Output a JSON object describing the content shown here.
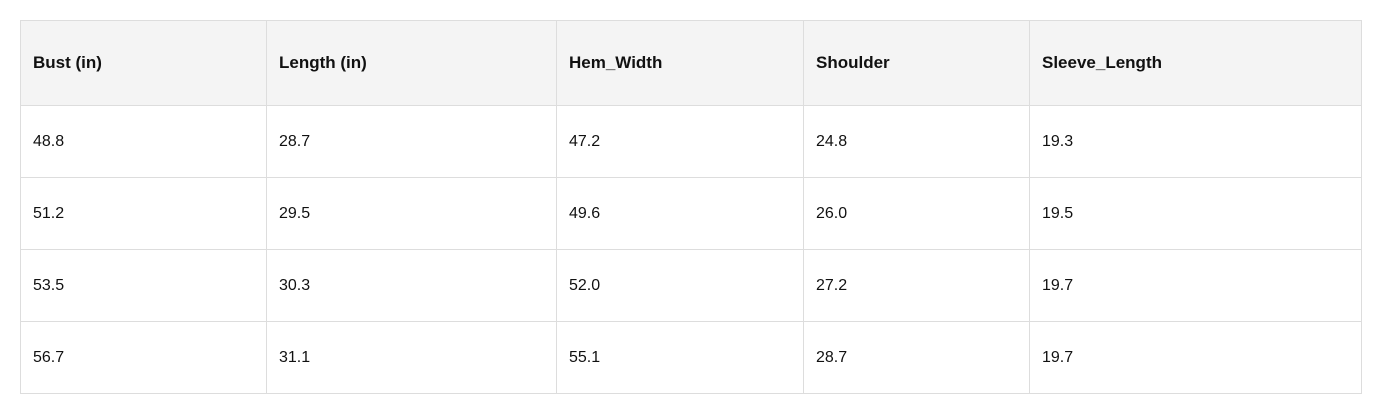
{
  "table": {
    "columns": [
      "Bust (in)",
      "Length (in)",
      "Hem_Width",
      "Shoulder",
      "Sleeve_Length"
    ],
    "rows": [
      [
        "48.8",
        "28.7",
        "47.2",
        "24.8",
        "19.3"
      ],
      [
        "51.2",
        "29.5",
        "49.6",
        "26.0",
        "19.5"
      ],
      [
        "53.5",
        "30.3",
        "52.0",
        "27.2",
        "19.7"
      ],
      [
        "56.7",
        "31.1",
        "55.1",
        "28.7",
        "19.7"
      ]
    ]
  }
}
